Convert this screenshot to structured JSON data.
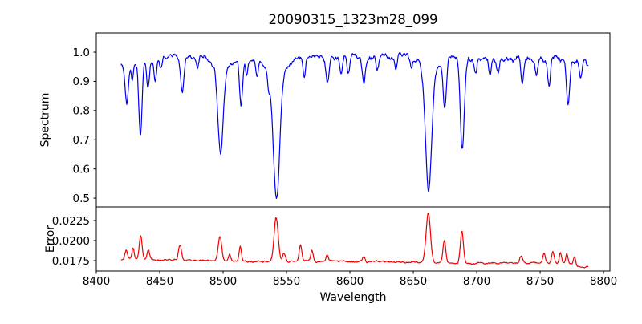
{
  "figure": {
    "title": "20090315_1323m28_099",
    "background": "#ffffff",
    "spine_color": "#000000"
  },
  "x_axis": {
    "label": "Wavelength",
    "tick_labels": [
      "8400",
      "8450",
      "8500",
      "8550",
      "8600",
      "8650",
      "8700",
      "8750",
      "8800"
    ],
    "tick_values": [
      8400,
      8450,
      8500,
      8550,
      8600,
      8650,
      8700,
      8750,
      8800
    ],
    "xlim": [
      8400,
      8805
    ]
  },
  "chart_data": [
    {
      "id": "spectrum",
      "type": "line",
      "title": "20090315_1323m28_099",
      "xlabel": "Wavelength",
      "ylabel": "Spectrum",
      "color": "#0000ee",
      "xlim": [
        8400,
        8805
      ],
      "ylim": [
        0.47,
        1.066
      ],
      "ytick_labels": [
        "0.5",
        "0.6",
        "0.7",
        "0.8",
        "0.9",
        "1.0"
      ],
      "ytick_values": [
        0.5,
        0.6,
        0.7,
        0.8,
        0.9,
        1.0
      ],
      "x_start": 8419.5,
      "x_end": 8788,
      "sample_step": 0.5,
      "continuum_anchors": [
        [
          8419,
          0.955
        ],
        [
          8425,
          0.973
        ],
        [
          8445,
          0.975
        ],
        [
          8460,
          0.99
        ],
        [
          8475,
          0.988
        ],
        [
          8490,
          0.985
        ],
        [
          8510,
          0.975
        ],
        [
          8530,
          0.975
        ],
        [
          8550,
          0.975
        ],
        [
          8575,
          0.985
        ],
        [
          8600,
          0.985
        ],
        [
          8625,
          0.985
        ],
        [
          8650,
          0.99
        ],
        [
          8665,
          0.985
        ],
        [
          8680,
          0.982
        ],
        [
          8695,
          0.975
        ],
        [
          8715,
          0.975
        ],
        [
          8740,
          0.975
        ],
        [
          8765,
          0.98
        ],
        [
          8788,
          0.965
        ]
      ],
      "lines": [
        [
          8424.0,
          -0.14,
          1.3
        ],
        [
          8428.5,
          -0.06,
          0.9
        ],
        [
          8434.8,
          -0.26,
          1.3
        ],
        [
          8440.8,
          -0.1,
          1.1
        ],
        [
          8446.5,
          -0.07,
          1.0
        ],
        [
          8451.0,
          -0.04,
          0.9
        ],
        [
          8467.8,
          -0.13,
          1.3
        ],
        [
          8480.0,
          -0.04,
          0.9
        ],
        [
          8498.0,
          -0.28,
          2.0
        ],
        [
          8498.0,
          -0.045,
          5.5
        ],
        [
          8514.1,
          -0.15,
          1.2
        ],
        [
          8518.5,
          -0.05,
          0.9
        ],
        [
          8526.7,
          -0.06,
          1.0
        ],
        [
          8536.0,
          -0.05,
          1.0
        ],
        [
          8542.1,
          -0.42,
          2.5
        ],
        [
          8542.1,
          -0.055,
          7.0
        ],
        [
          8564.0,
          -0.07,
          1.0
        ],
        [
          8582.3,
          -0.09,
          1.2
        ],
        [
          8593.0,
          -0.06,
          1.0
        ],
        [
          8598.8,
          -0.06,
          1.0
        ],
        [
          8611.0,
          -0.09,
          1.2
        ],
        [
          8621.6,
          -0.05,
          1.0
        ],
        [
          8636.0,
          -0.04,
          0.9
        ],
        [
          8648.5,
          -0.05,
          1.0
        ],
        [
          8662.1,
          -0.41,
          2.3
        ],
        [
          8662.1,
          -0.05,
          6.5
        ],
        [
          8674.8,
          -0.17,
          1.3
        ],
        [
          8688.6,
          -0.3,
          1.6
        ],
        [
          8699.0,
          -0.05,
          1.0
        ],
        [
          8710.5,
          -0.06,
          1.0
        ],
        [
          8717.0,
          -0.05,
          0.9
        ],
        [
          8736.0,
          -0.08,
          1.1
        ],
        [
          8747.0,
          -0.05,
          0.9
        ],
        [
          8757.0,
          -0.09,
          1.1
        ],
        [
          8772.0,
          -0.16,
          1.3
        ],
        [
          8782.0,
          -0.06,
          1.0
        ]
      ],
      "noise": {
        "seed": 13,
        "amp_anchors": [
          [
            8419,
            0.012
          ],
          [
            8550,
            0.01
          ],
          [
            8690,
            0.014
          ],
          [
            8788,
            0.014
          ]
        ]
      }
    },
    {
      "id": "error",
      "type": "line",
      "xlabel": "Wavelength",
      "ylabel": "Error",
      "color": "#ee0000",
      "xlim": [
        8400,
        8805
      ],
      "ylim": [
        0.0162,
        0.0242
      ],
      "ytick_labels": [
        "0.0175",
        "0.0200",
        "0.0225"
      ],
      "ytick_values": [
        0.0175,
        0.02,
        0.0225
      ],
      "x_start": 8419.5,
      "x_end": 8788,
      "sample_step": 0.5,
      "continuum_anchors": [
        [
          8419,
          0.0177
        ],
        [
          8450,
          0.0176
        ],
        [
          8480,
          0.0175
        ],
        [
          8520,
          0.0174
        ],
        [
          8560,
          0.0174
        ],
        [
          8600,
          0.0174
        ],
        [
          8640,
          0.0173
        ],
        [
          8680,
          0.0172
        ],
        [
          8720,
          0.0172
        ],
        [
          8755,
          0.0172
        ],
        [
          8775,
          0.0171
        ],
        [
          8782,
          0.0166
        ],
        [
          8788,
          0.0168
        ]
      ],
      "lines": [
        [
          8423.5,
          0.001,
          1.0
        ],
        [
          8429.0,
          0.0014,
          0.9
        ],
        [
          8435.0,
          0.003,
          1.1
        ],
        [
          8441.0,
          0.0013,
          1.0
        ],
        [
          8466.0,
          0.002,
          1.2
        ],
        [
          8497.5,
          0.0031,
          1.4
        ],
        [
          8505.0,
          0.0008,
          0.9
        ],
        [
          8513.5,
          0.0018,
          0.9
        ],
        [
          8541.8,
          0.0054,
          1.6
        ],
        [
          8548.0,
          0.001,
          1.0
        ],
        [
          8561.0,
          0.002,
          1.0
        ],
        [
          8570.0,
          0.0014,
          0.9
        ],
        [
          8582.0,
          0.0008,
          0.9
        ],
        [
          8611.0,
          0.0006,
          0.9
        ],
        [
          8661.8,
          0.0062,
          1.7
        ],
        [
          8674.5,
          0.0028,
          1.1
        ],
        [
          8688.3,
          0.004,
          1.2
        ],
        [
          8735.0,
          0.0009,
          1.1
        ],
        [
          8753.0,
          0.0012,
          1.0
        ],
        [
          8760.0,
          0.0014,
          1.0
        ],
        [
          8766.0,
          0.0013,
          0.9
        ],
        [
          8771.0,
          0.0013,
          0.9
        ],
        [
          8777.0,
          0.001,
          0.9
        ]
      ],
      "noise": {
        "seed": 7,
        "amp_anchors": [
          [
            8419,
            0.00015
          ],
          [
            8788,
            0.00015
          ]
        ]
      }
    }
  ]
}
